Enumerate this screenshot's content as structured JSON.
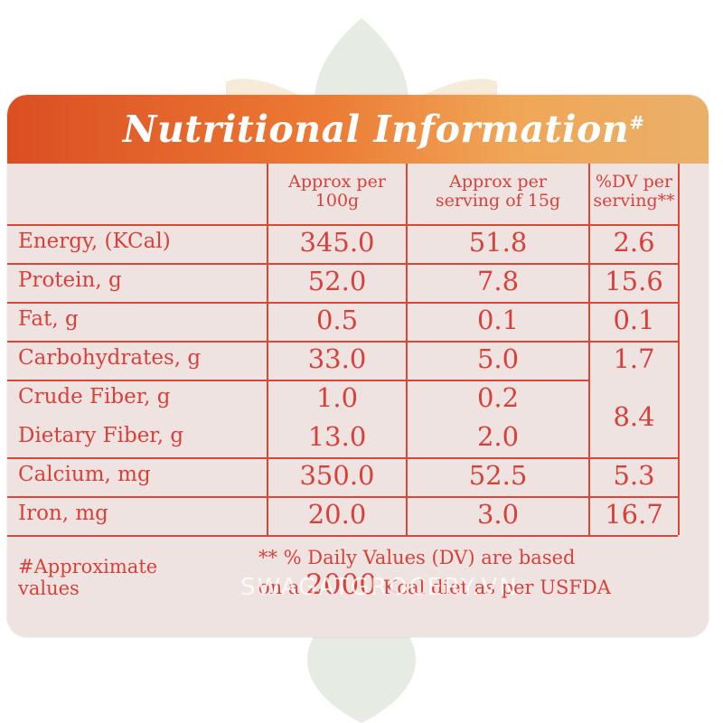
{
  "title": "Nutritional Information",
  "title_mark": "#",
  "columns": [
    {
      "line1": "Approx per",
      "line2": "100g"
    },
    {
      "line1": "Approx per",
      "line2": "serving of 15g"
    },
    {
      "line1": "%DV per",
      "line2": "serving**"
    }
  ],
  "rows": [
    {
      "label": "Energy, (KCal)",
      "per100g": "345.0",
      "perServing": "51.8",
      "dv": "2.6"
    },
    {
      "label": "Protein, g",
      "per100g": "52.0",
      "perServing": "7.8",
      "dv": "15.6"
    },
    {
      "label": "Fat, g",
      "per100g": "0.5",
      "perServing": "0.1",
      "dv": "0.1"
    },
    {
      "label": "Carbohydrates, g",
      "per100g": "33.0",
      "perServing": "5.0",
      "dv": "1.7"
    },
    {
      "label": "Crude Fiber, g",
      "per100g": "1.0",
      "perServing": "0.2",
      "dv": "8.4"
    },
    {
      "label": "Dietary Fiber, g",
      "per100g": "13.0",
      "perServing": "2.0",
      "dv": ""
    },
    {
      "label": "Calcium, mg",
      "per100g": "350.0",
      "perServing": "52.5",
      "dv": "5.3"
    },
    {
      "label": "Iron, mg",
      "per100g": "20.0",
      "perServing": "3.0",
      "dv": "16.7"
    }
  ],
  "footnote_left": {
    "line1": "#Approximate",
    "line2": "values"
  },
  "footnote_right": {
    "line1": "** % Daily Values (DV) are based",
    "pre": "on a",
    "big": "2000",
    "post": "Kcal diet as per USFDA"
  },
  "watermark": "SWAGATGROCERY.VN",
  "colors": {
    "text": "#d8413a",
    "background": "#efe3e1",
    "banner_start": "#db4e22",
    "banner_end": "#eab069"
  }
}
